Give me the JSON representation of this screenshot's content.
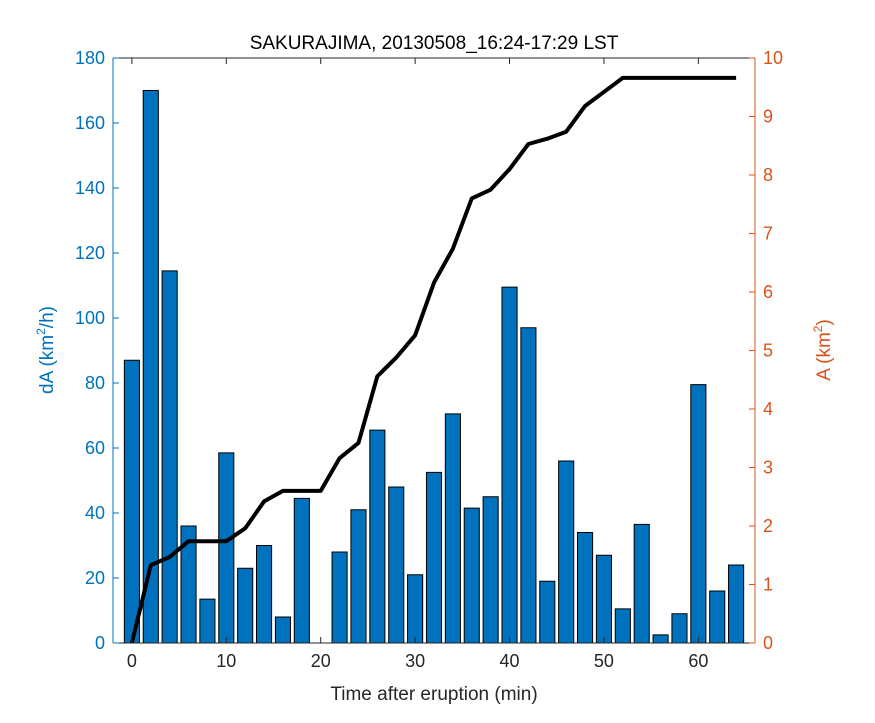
{
  "chart_data": {
    "type": "bar",
    "title": "SAKURAJIMA, 20130508_16:24-17:29 LST",
    "xlabel": "Time after eruption (min)",
    "ylabel_left": {
      "base": "dA (km",
      "sup": "2",
      "tail": "/h)"
    },
    "ylabel_right": {
      "base": "A (km",
      "sup": "2",
      "tail": ")"
    },
    "xlim": [
      -2,
      66
    ],
    "ylim_left": [
      0,
      180
    ],
    "ylim_right": [
      0,
      10
    ],
    "xticks": [
      0,
      10,
      20,
      30,
      40,
      50,
      60
    ],
    "yticks_left": [
      0,
      20,
      40,
      60,
      80,
      100,
      120,
      140,
      160,
      180
    ],
    "yticks_right": [
      0,
      1,
      2,
      3,
      4,
      5,
      6,
      7,
      8,
      9,
      10
    ],
    "bar_width": 1.6,
    "colors": {
      "bars": "#0072BD",
      "bar_edge": "#000000",
      "line": "#000000",
      "left_axis": "#0072BD",
      "right_axis": "#D95319",
      "text": "#262626"
    },
    "bars": {
      "x": [
        0,
        2,
        4,
        6,
        8,
        10,
        12,
        14,
        16,
        18,
        20,
        22,
        24,
        26,
        28,
        30,
        32,
        34,
        36,
        38,
        40,
        42,
        44,
        46,
        48,
        50,
        52,
        54,
        56,
        58,
        60,
        62,
        64
      ],
      "values": [
        87,
        170,
        114.5,
        36,
        13.5,
        58.5,
        23,
        30,
        8,
        44.5,
        0,
        28,
        41,
        65.5,
        48,
        21,
        52.5,
        70.5,
        41.5,
        45,
        109.5,
        97,
        19,
        56,
        34,
        27,
        10.5,
        36.5,
        2.5,
        9,
        79.5,
        16,
        24
      ]
    },
    "line": {
      "x": [
        0,
        2,
        4,
        6,
        8,
        10,
        12,
        14,
        16,
        18,
        20,
        22,
        24,
        26,
        28,
        30,
        32,
        34,
        36,
        38,
        40,
        42,
        44,
        46,
        48,
        50,
        52,
        54,
        56,
        58,
        60,
        62,
        64
      ],
      "y": [
        0,
        1.33,
        1.47,
        1.74,
        1.74,
        1.74,
        1.96,
        2.42,
        2.6,
        2.6,
        2.6,
        3.16,
        3.42,
        4.56,
        4.88,
        5.26,
        6.16,
        6.74,
        7.6,
        7.75,
        8.1,
        8.53,
        8.62,
        8.74,
        9.18,
        9.42,
        9.66,
        9.66,
        9.66,
        9.66,
        9.66,
        9.66,
        9.66
      ]
    }
  }
}
